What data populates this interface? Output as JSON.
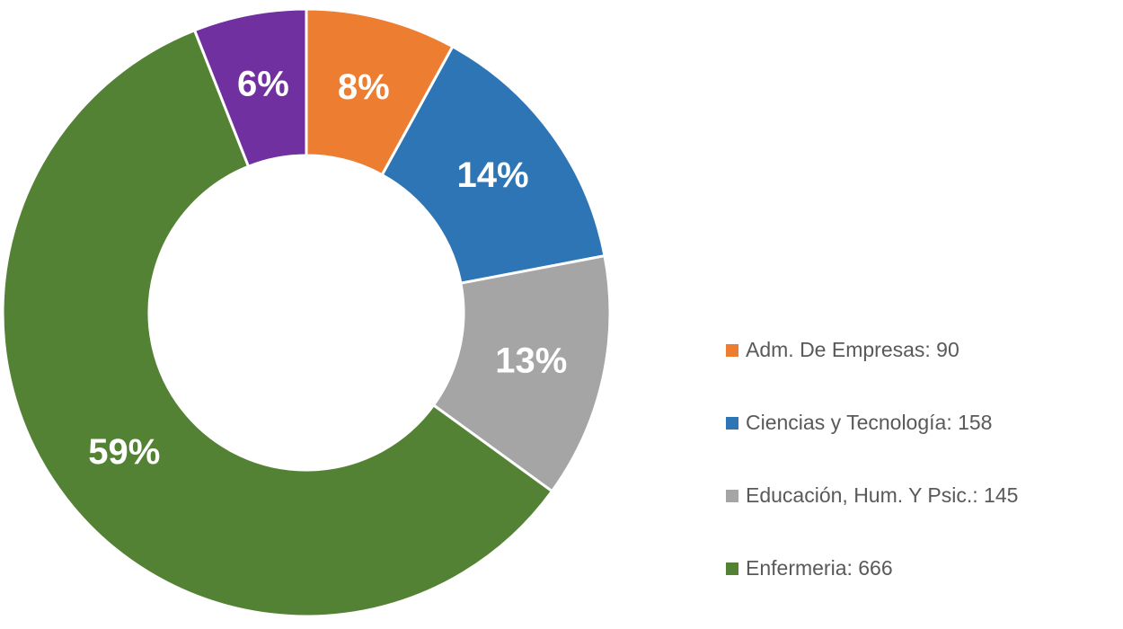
{
  "chart_data": {
    "type": "donut",
    "categories": [
      "Adm. De Empresas: 90",
      "Ciencias y Tecnología: 158",
      "Educación, Hum. Y Psic.: 145",
      "Enfermeria: 666",
      null
    ],
    "values": [
      8,
      14,
      13,
      59,
      6
    ],
    "value_labels": [
      "8%",
      "14%",
      "13%",
      "59%",
      "6%"
    ],
    "colors": [
      "#ed7d31",
      "#2e75b6",
      "#a5a5a5",
      "#548235",
      "#7030a0"
    ],
    "legend": "right"
  }
}
